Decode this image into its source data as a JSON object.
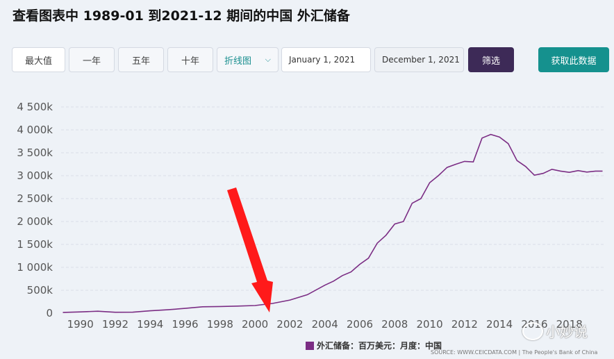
{
  "title": "查看图表中 1989-01 到2021-12 期间的中国 外汇储备",
  "toolbar": {
    "range_buttons": [
      "最大值",
      "一年",
      "五年",
      "十年"
    ],
    "chart_type": "折线图",
    "start_date": "January 1, 2021",
    "end_date": "December 1, 2021",
    "filter_label": "筛选",
    "fetch_label": "获取此数据"
  },
  "legend": "外汇储备：百万美元：月度：中国",
  "source": "SOURCE: WWW.CEICDATA.COM | The People's Bank of China",
  "watermark": "小妙说",
  "colors": {
    "series": "#7b2d84",
    "arrow": "#ff1a1a",
    "filter": "#3d2a57",
    "fetch": "#15918e"
  },
  "chart_data": {
    "type": "line",
    "y_ticks": [
      "0",
      "500k",
      "1 000k",
      "1 500k",
      "2 000k",
      "2 500k",
      "3 000k",
      "3 500k",
      "4 000k",
      "4 500k"
    ],
    "x_ticks": [
      "1990",
      "1992",
      "1994",
      "1996",
      "1998",
      "2000",
      "2002",
      "2004",
      "2006",
      "2008",
      "2010",
      "2012",
      "2014",
      "2016",
      "2018"
    ],
    "ylim": [
      0,
      4500000
    ],
    "xlim": [
      1988.9,
      2020.0
    ],
    "grid": true,
    "legend_position": "bottom-center",
    "series": [
      {
        "name": "外汇储备：百万美元：月度：中国",
        "x": [
          1989.0,
          1990.0,
          1991.0,
          1992.0,
          1993.0,
          1994.0,
          1995.0,
          1996.0,
          1997.0,
          1998.0,
          1999.0,
          2000.0,
          2001.0,
          2002.0,
          2003.0,
          2004.0,
          2004.5,
          2005.0,
          2005.5,
          2006.0,
          2006.5,
          2007.0,
          2007.5,
          2008.0,
          2008.5,
          2009.0,
          2009.5,
          2010.0,
          2010.5,
          2011.0,
          2011.5,
          2012.0,
          2012.5,
          2013.0,
          2013.5,
          2014.0,
          2014.5,
          2015.0,
          2015.5,
          2016.0,
          2016.5,
          2017.0,
          2017.5,
          2018.0,
          2018.5,
          2019.0,
          2019.5,
          2019.9
        ],
        "values": [
          17000,
          28000,
          43000,
          19000,
          21000,
          52000,
          74000,
          105000,
          140000,
          145000,
          155000,
          166000,
          212000,
          286000,
          403000,
          610000,
          700000,
          819000,
          900000,
          1066000,
          1200000,
          1528000,
          1700000,
          1946000,
          2000000,
          2399000,
          2500000,
          2847000,
          3000000,
          3181000,
          3250000,
          3312000,
          3300000,
          3821000,
          3900000,
          3843000,
          3700000,
          3330000,
          3200000,
          3011000,
          3050000,
          3140000,
          3100000,
          3073000,
          3110000,
          3079000,
          3100000,
          3100000
        ]
      }
    ],
    "annotation": "arrow"
  }
}
